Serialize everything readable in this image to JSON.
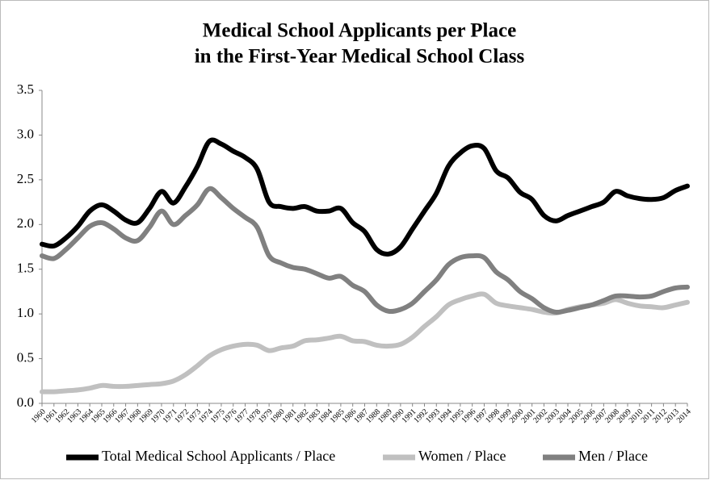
{
  "chart_data": {
    "type": "line",
    "title": [
      "Medical School Applicants per Place",
      "in the First-Year Medical School Class"
    ],
    "categories": [
      "1960",
      "1961",
      "1962",
      "1963",
      "1964",
      "1965",
      "1966",
      "1967",
      "1968",
      "1969",
      "1970",
      "1971",
      "1972",
      "1973",
      "1974",
      "1975",
      "1976",
      "1977",
      "1978",
      "1979",
      "1980",
      "1981",
      "1982",
      "1983",
      "1984",
      "1985",
      "1986",
      "1987",
      "1988",
      "1989",
      "1990",
      "1991",
      "1992",
      "1993",
      "1994",
      "1995",
      "1996",
      "1997",
      "1998",
      "1999",
      "2000",
      "2001",
      "2002",
      "2003",
      "2004",
      "2005",
      "2006",
      "2007",
      "2008",
      "2009",
      "2010",
      "2011",
      "2012",
      "2013",
      "2014"
    ],
    "series": [
      {
        "name": "Total Medical School Applicants / Place",
        "color": "#000000",
        "values": [
          1.78,
          1.76,
          1.85,
          1.98,
          2.15,
          2.22,
          2.15,
          2.05,
          2.02,
          2.18,
          2.37,
          2.24,
          2.42,
          2.65,
          2.93,
          2.9,
          2.82,
          2.75,
          2.62,
          2.25,
          2.2,
          2.18,
          2.2,
          2.15,
          2.15,
          2.18,
          2.02,
          1.92,
          1.72,
          1.67,
          1.75,
          1.95,
          2.15,
          2.35,
          2.65,
          2.8,
          2.88,
          2.85,
          2.6,
          2.52,
          2.36,
          2.28,
          2.1,
          2.04,
          2.1,
          2.15,
          2.2,
          2.25,
          2.37,
          2.32,
          2.29,
          2.28,
          2.3,
          2.38,
          2.43
        ]
      },
      {
        "name": "Women / Place",
        "color": "#c0c0c0",
        "values": [
          0.13,
          0.13,
          0.14,
          0.15,
          0.17,
          0.2,
          0.19,
          0.19,
          0.2,
          0.21,
          0.22,
          0.25,
          0.32,
          0.42,
          0.53,
          0.6,
          0.64,
          0.66,
          0.65,
          0.59,
          0.62,
          0.64,
          0.7,
          0.71,
          0.73,
          0.75,
          0.7,
          0.69,
          0.65,
          0.64,
          0.66,
          0.74,
          0.86,
          0.97,
          1.1,
          1.16,
          1.2,
          1.22,
          1.12,
          1.09,
          1.07,
          1.05,
          1.02,
          1.01,
          1.05,
          1.08,
          1.1,
          1.12,
          1.16,
          1.12,
          1.09,
          1.08,
          1.07,
          1.1,
          1.13
        ]
      },
      {
        "name": "Men / Place",
        "color": "#808080",
        "values": [
          1.65,
          1.62,
          1.72,
          1.85,
          1.98,
          2.02,
          1.95,
          1.85,
          1.82,
          1.97,
          2.15,
          2.0,
          2.1,
          2.22,
          2.4,
          2.3,
          2.18,
          2.08,
          1.97,
          1.65,
          1.57,
          1.52,
          1.5,
          1.45,
          1.4,
          1.42,
          1.32,
          1.25,
          1.1,
          1.03,
          1.05,
          1.12,
          1.25,
          1.38,
          1.55,
          1.63,
          1.65,
          1.63,
          1.47,
          1.38,
          1.25,
          1.17,
          1.07,
          1.02,
          1.04,
          1.07,
          1.1,
          1.15,
          1.2,
          1.2,
          1.19,
          1.2,
          1.25,
          1.29,
          1.3
        ]
      }
    ],
    "ylim": [
      0,
      3.5
    ],
    "yticks": [
      {
        "value": 0,
        "label": "0.0"
      },
      0.5,
      {
        "value": 1,
        "label": "1.0"
      },
      1.5,
      {
        "value": 2,
        "label": "2.0"
      },
      2.5,
      {
        "value": 3,
        "label": "3.0"
      },
      3.5
    ],
    "grid": false,
    "legend": "bottom"
  }
}
